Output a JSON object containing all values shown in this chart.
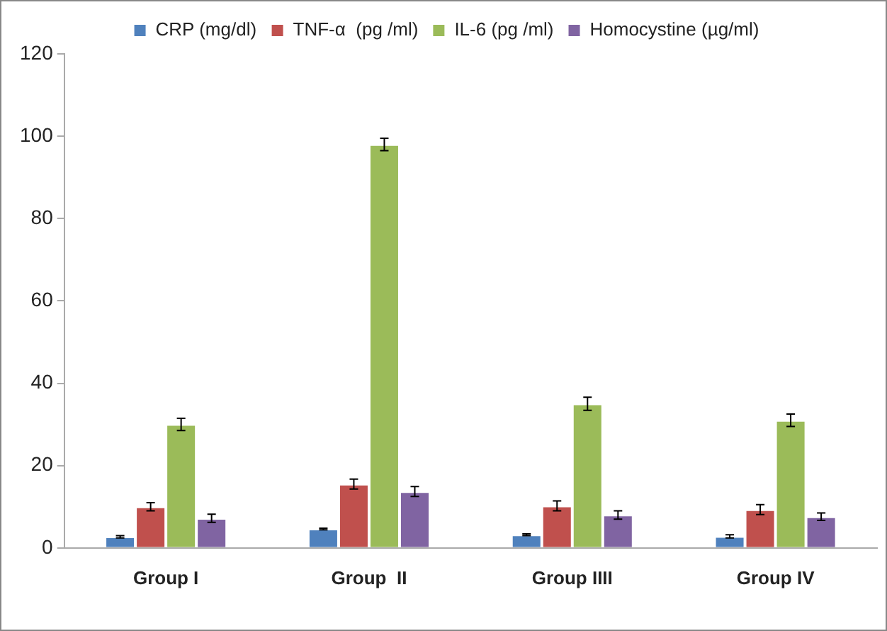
{
  "chart_data": {
    "type": "bar",
    "categories": [
      "Group I",
      "Group  II",
      "Group IIII",
      "Group IV"
    ],
    "series": [
      {
        "name": "CRP (mg/dl)",
        "color": "#4f81bd",
        "values": [
          2.7,
          4.6,
          3.2,
          2.8
        ],
        "errors": [
          0.3,
          0.2,
          0.2,
          0.4
        ]
      },
      {
        "name": "TNF-α  (pg /ml)",
        "color": "#c0504d",
        "values": [
          10,
          15.5,
          10.2,
          9.3
        ],
        "errors": [
          1,
          1.2,
          1.2,
          1.2
        ]
      },
      {
        "name": "IL-6 (pg /ml)",
        "color": "#9bbb59",
        "values": [
          30,
          98,
          35,
          31
        ],
        "errors": [
          1.5,
          1.5,
          1.6,
          1.5
        ]
      },
      {
        "name": "Homocystine (µg/ml)",
        "color": "#8064a2",
        "values": [
          7.2,
          13.7,
          8,
          7.6
        ],
        "errors": [
          1,
          1.2,
          1,
          0.9
        ]
      }
    ],
    "ylim": [
      0,
      120
    ],
    "yticks": [
      0,
      20,
      40,
      60,
      80,
      100,
      120
    ],
    "grid": false,
    "legend": "top"
  }
}
